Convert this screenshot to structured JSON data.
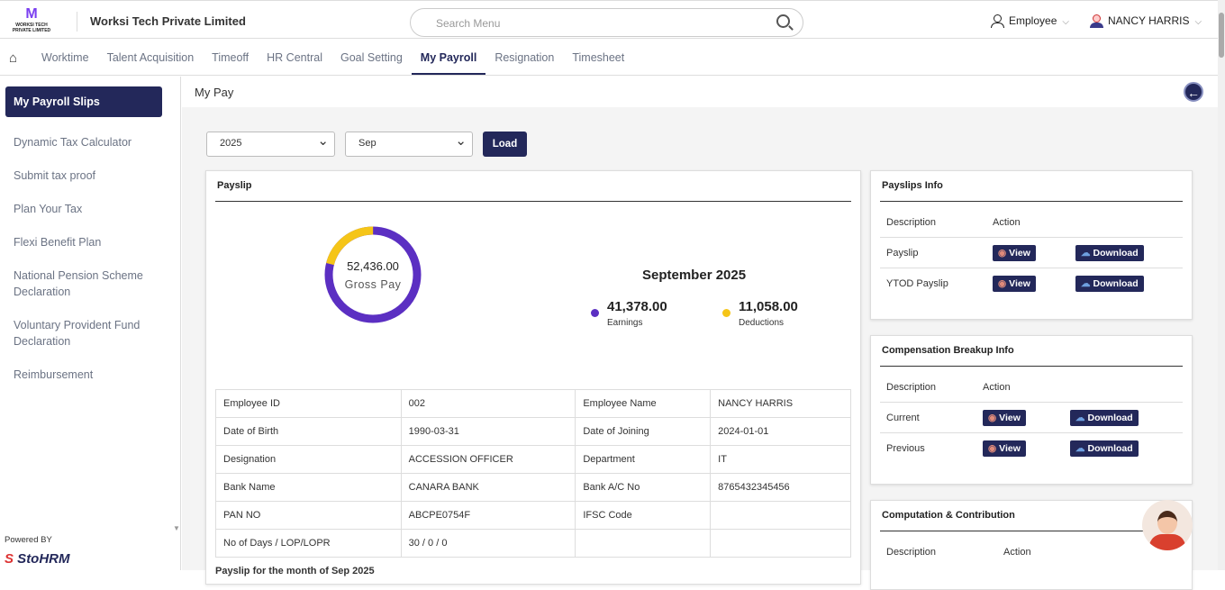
{
  "header": {
    "logo_text": "WORKSI TECH PRIVATE LIMITED",
    "company": "Worksi Tech Private Limited",
    "search_placeholder": "Search Menu",
    "role": "Employee",
    "user": "NANCY HARRIS"
  },
  "nav": {
    "tabs": [
      "Worktime",
      "Talent Acquisition",
      "Timeoff",
      "HR Central",
      "Goal Setting",
      "My Payroll",
      "Resignation",
      "Timesheet"
    ],
    "active": "My Payroll"
  },
  "sidebar": {
    "items": [
      "My Payroll Slips",
      "Dynamic Tax Calculator",
      "Submit tax proof",
      "Plan Your Tax",
      "Flexi Benefit Plan",
      "National Pension Scheme Declaration",
      "Voluntary Provident Fund Declaration",
      "Reimbursement"
    ],
    "powered_by": "Powered BY",
    "brand": "StoHRM"
  },
  "page": {
    "title": "My Pay",
    "year": "2025",
    "month": "Sep",
    "load": "Load"
  },
  "payslip": {
    "title": "Payslip",
    "gross_value": "52,436.00",
    "gross_label": "Gross Pay",
    "period": "September 2025",
    "earnings_value": "41,378.00",
    "earnings_label": "Earnings",
    "deductions_value": "11,058.00",
    "deductions_label": "Deductions",
    "earnings_num": 41378,
    "deductions_num": 11058,
    "colors": {
      "earnings": "#5b2fc2",
      "deductions": "#f5c518"
    },
    "rows": [
      [
        "Employee ID",
        "002",
        "Employee Name",
        "NANCY HARRIS"
      ],
      [
        "Date of Birth",
        "1990-03-31",
        "Date of Joining",
        "2024-01-01"
      ],
      [
        "Designation",
        "ACCESSION OFFICER",
        "Department",
        "IT"
      ],
      [
        "Bank Name",
        "CANARA BANK",
        "Bank A/C No",
        "8765432345456"
      ],
      [
        "PAN NO",
        "ABCPE0754F",
        "IFSC Code",
        ""
      ],
      [
        "No of Days / LOP/LOPR",
        "30 / 0 / 0",
        "",
        ""
      ]
    ],
    "footer": "Payslip for the month of Sep 2025"
  },
  "cards": [
    {
      "title": "Payslips Info",
      "desc": "Description",
      "action": "Action",
      "rows": [
        "Payslip",
        "YTOD Payslip"
      ]
    },
    {
      "title": "Compensation Breakup Info",
      "desc": "Description",
      "action": "Action",
      "rows": [
        "Current",
        "Previous"
      ]
    },
    {
      "title": "Computation & Contribution",
      "desc": "Description",
      "action": "Action",
      "rows": []
    }
  ],
  "buttons": {
    "view": "View",
    "download": "Download"
  }
}
